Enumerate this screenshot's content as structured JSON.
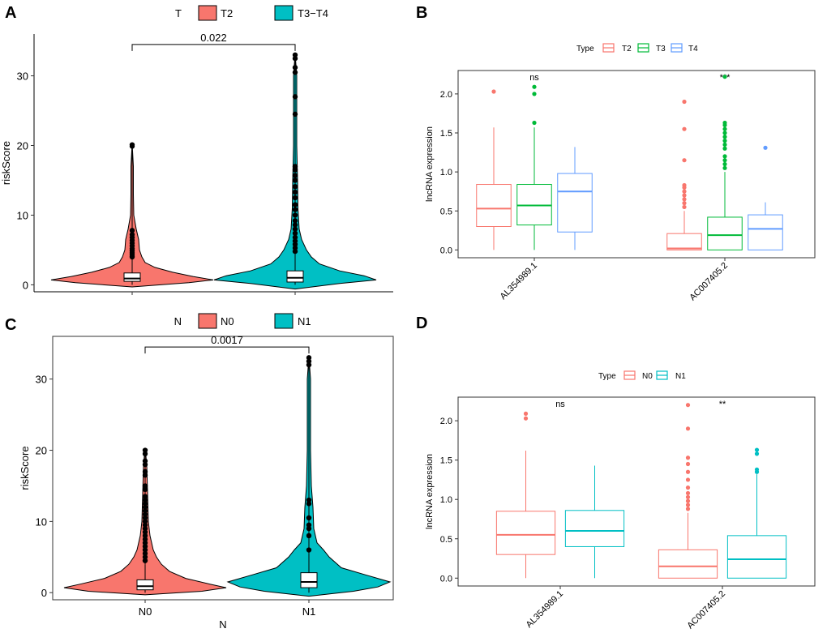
{
  "chart_data": [
    {
      "panel": "A",
      "type": "violin",
      "legend": {
        "title": "T",
        "placement": "top",
        "entries": [
          {
            "label": "T2",
            "color": "#F8766D"
          },
          {
            "label": "T3−T4",
            "color": "#00BFC4"
          }
        ]
      },
      "categories": [
        "T2",
        "T3-T4"
      ],
      "colors": [
        "#F8766D",
        "#00BFC4"
      ],
      "ylabel": "riskScore",
      "xlabel": "",
      "ylim": [
        -1,
        36
      ],
      "yticks": [
        0,
        10,
        20,
        30
      ],
      "show_x_tick_labels": false,
      "comparison": {
        "label": "0.022",
        "between": [
          0,
          1
        ],
        "y": 34.5
      },
      "groups": [
        {
          "name": "T2",
          "median": 0.9,
          "q1": 0.5,
          "q3": 1.7,
          "whisker_low": 0.0,
          "whisker_high": 3.6,
          "outliers": [
            4.0,
            4.3,
            4.6,
            4.9,
            5.2,
            5.6,
            6.0,
            6.4,
            6.8,
            7.2,
            7.8,
            19.9,
            20.1
          ],
          "density": [
            [
              -0.3,
              0.0
            ],
            [
              0.3,
              0.7
            ],
            [
              0.7,
              1.0
            ],
            [
              1.2,
              0.75
            ],
            [
              1.8,
              0.5
            ],
            [
              2.5,
              0.28
            ],
            [
              3.2,
              0.16
            ],
            [
              4.0,
              0.12
            ],
            [
              5.0,
              0.09
            ],
            [
              6.5,
              0.08
            ],
            [
              8.0,
              0.05
            ],
            [
              10.0,
              0.02
            ],
            [
              13.0,
              0.015
            ],
            [
              17.0,
              0.015
            ],
            [
              20.3,
              0.0
            ]
          ]
        },
        {
          "name": "T3-T4",
          "median": 1.0,
          "q1": 0.4,
          "q3": 2.0,
          "whisker_low": 0.0,
          "whisker_high": 4.4,
          "outliers": [
            4.8,
            5.3,
            5.8,
            6.3,
            6.8,
            7.4,
            8.0,
            8.6,
            9.2,
            10.0,
            10.8,
            11.5,
            12.5,
            13.3,
            14.1,
            15.0,
            15.7,
            16.5,
            17.0,
            24.5,
            27.0,
            30.5,
            31.2,
            32.5,
            33.0
          ],
          "density": [
            [
              -0.6,
              0.0
            ],
            [
              0.2,
              0.55
            ],
            [
              0.7,
              1.0
            ],
            [
              1.3,
              0.85
            ],
            [
              2.0,
              0.55
            ],
            [
              3.0,
              0.3
            ],
            [
              4.0,
              0.2
            ],
            [
              5.0,
              0.14
            ],
            [
              6.5,
              0.08
            ],
            [
              8.0,
              0.05
            ],
            [
              11.0,
              0.035
            ],
            [
              15.0,
              0.03
            ],
            [
              20.0,
              0.02
            ],
            [
              25.0,
              0.02
            ],
            [
              30.0,
              0.02
            ],
            [
              33.2,
              0.0
            ]
          ]
        }
      ]
    },
    {
      "panel": "B",
      "type": "box",
      "legend": {
        "title": "Type",
        "placement": "top",
        "entries": [
          {
            "label": "T2",
            "color": "#F8766D"
          },
          {
            "label": "T3",
            "color": "#00BA38"
          },
          {
            "label": "T4",
            "color": "#619CFF"
          }
        ]
      },
      "categories": [
        "AL354989.1",
        "AC007405.2"
      ],
      "ylabel": "lncRNA expression",
      "xlabel": "",
      "ylim": [
        -0.1,
        2.3
      ],
      "yticks": [
        0.0,
        0.5,
        1.0,
        1.5,
        2.0
      ],
      "significance": [
        "ns",
        "***"
      ],
      "series": [
        {
          "name": "T2",
          "color": "#F8766D",
          "boxes": [
            {
              "q1": 0.3,
              "median": 0.53,
              "q3": 0.84,
              "low": 0.0,
              "high": 1.57,
              "outliers": [
                2.03
              ]
            },
            {
              "q1": 0.0,
              "median": 0.02,
              "q3": 0.21,
              "low": 0.0,
              "high": 0.5,
              "outliers": [
                0.55,
                0.6,
                0.65,
                0.7,
                0.75,
                0.8,
                0.83,
                1.15,
                1.55,
                1.9
              ]
            }
          ]
        },
        {
          "name": "T3",
          "color": "#00BA38",
          "boxes": [
            {
              "q1": 0.32,
              "median": 0.57,
              "q3": 0.84,
              "low": 0.0,
              "high": 1.57,
              "outliers": [
                1.63,
                2.0,
                2.09
              ]
            },
            {
              "q1": 0.0,
              "median": 0.19,
              "q3": 0.42,
              "low": 0.0,
              "high": 1.0,
              "outliers": [
                1.05,
                1.1,
                1.15,
                1.2,
                1.3,
                1.35,
                1.4,
                1.45,
                1.5,
                1.55,
                1.6,
                1.63,
                2.22
              ]
            }
          ]
        },
        {
          "name": "T4",
          "color": "#619CFF",
          "boxes": [
            {
              "q1": 0.23,
              "median": 0.75,
              "q3": 0.98,
              "low": 0.0,
              "high": 1.32,
              "outliers": []
            },
            {
              "q1": 0.0,
              "median": 0.27,
              "q3": 0.45,
              "low": 0.0,
              "high": 0.61,
              "outliers": [
                1.31
              ]
            }
          ]
        }
      ]
    },
    {
      "panel": "C",
      "type": "violin",
      "legend": {
        "title": "N",
        "placement": "top",
        "entries": [
          {
            "label": "N0",
            "color": "#F8766D"
          },
          {
            "label": "N1",
            "color": "#00BFC4"
          }
        ]
      },
      "categories": [
        "N0",
        "N1"
      ],
      "colors": [
        "#F8766D",
        "#00BFC4"
      ],
      "ylabel": "riskScore",
      "xlabel": "N",
      "ylim": [
        -1,
        36
      ],
      "yticks": [
        0,
        10,
        20,
        30
      ],
      "show_x_tick_labels": true,
      "comparison": {
        "label": "0.0017",
        "between": [
          0,
          1
        ],
        "y": 34.5
      },
      "groups": [
        {
          "name": "N0",
          "median": 0.9,
          "q1": 0.4,
          "q3": 1.8,
          "whisker_low": 0.0,
          "whisker_high": 4.0,
          "outliers": [
            4.5,
            5.0,
            5.5,
            6.0,
            6.5,
            7.0,
            7.5,
            8.0,
            8.5,
            9.0,
            9.5,
            10.0,
            10.5,
            11.0,
            11.5,
            12.0,
            12.5,
            13.0,
            13.5,
            14.5,
            15.0,
            16.5,
            17.0,
            18.0,
            18.5,
            19.5,
            20.0
          ],
          "density": [
            [
              -0.3,
              0.0
            ],
            [
              0.2,
              0.7
            ],
            [
              0.7,
              1.0
            ],
            [
              1.2,
              0.8
            ],
            [
              2.0,
              0.5
            ],
            [
              3.0,
              0.3
            ],
            [
              4.0,
              0.2
            ],
            [
              5.0,
              0.14
            ],
            [
              6.0,
              0.1
            ],
            [
              8.0,
              0.06
            ],
            [
              10.0,
              0.04
            ],
            [
              14.0,
              0.03
            ],
            [
              18.0,
              0.02
            ],
            [
              20.3,
              0.0
            ]
          ]
        },
        {
          "name": "N1",
          "median": 1.5,
          "q1": 0.7,
          "q3": 2.8,
          "whisker_low": 0.0,
          "whisker_high": 5.5,
          "outliers": [
            6.0,
            8.0,
            9.0,
            9.5,
            10.5,
            12.5,
            13.0,
            32.0,
            32.5,
            33.0
          ],
          "density": [
            [
              -0.5,
              0.0
            ],
            [
              0.2,
              0.55
            ],
            [
              0.8,
              0.85
            ],
            [
              1.5,
              1.0
            ],
            [
              2.5,
              0.7
            ],
            [
              3.5,
              0.4
            ],
            [
              5.0,
              0.25
            ],
            [
              6.0,
              0.18
            ],
            [
              7.0,
              0.1
            ],
            [
              9.0,
              0.06
            ],
            [
              12.0,
              0.05
            ],
            [
              15.0,
              0.03
            ],
            [
              20.0,
              0.02
            ],
            [
              25.0,
              0.02
            ],
            [
              30.0,
              0.02
            ],
            [
              33.2,
              0.0
            ]
          ]
        }
      ]
    },
    {
      "panel": "D",
      "type": "box",
      "legend": {
        "title": "Type",
        "placement": "top",
        "entries": [
          {
            "label": "N0",
            "color": "#F8766D"
          },
          {
            "label": "N1",
            "color": "#00BFC4"
          }
        ]
      },
      "categories": [
        "AL354989.1",
        "AC007405.2"
      ],
      "ylabel": "lncRNA expression",
      "xlabel": "",
      "ylim": [
        -0.1,
        2.3
      ],
      "yticks": [
        0.0,
        0.5,
        1.0,
        1.5,
        2.0
      ],
      "significance": [
        "ns",
        "**"
      ],
      "series": [
        {
          "name": "N0",
          "color": "#F8766D",
          "boxes": [
            {
              "q1": 0.3,
              "median": 0.55,
              "q3": 0.85,
              "low": 0.0,
              "high": 1.62,
              "outliers": [
                2.03,
                2.09
              ]
            },
            {
              "q1": 0.0,
              "median": 0.15,
              "q3": 0.36,
              "low": 0.0,
              "high": 0.83,
              "outliers": [
                0.88,
                0.93,
                0.98,
                1.03,
                1.08,
                1.15,
                1.25,
                1.35,
                1.45,
                1.53,
                1.9,
                2.2
              ]
            }
          ]
        },
        {
          "name": "N1",
          "color": "#00BFC4",
          "boxes": [
            {
              "q1": 0.4,
              "median": 0.6,
              "q3": 0.86,
              "low": 0.0,
              "high": 1.43,
              "outliers": []
            },
            {
              "q1": 0.0,
              "median": 0.24,
              "q3": 0.54,
              "low": 0.0,
              "high": 1.32,
              "outliers": [
                1.35,
                1.38,
                1.58,
                1.63
              ]
            }
          ]
        }
      ]
    }
  ]
}
